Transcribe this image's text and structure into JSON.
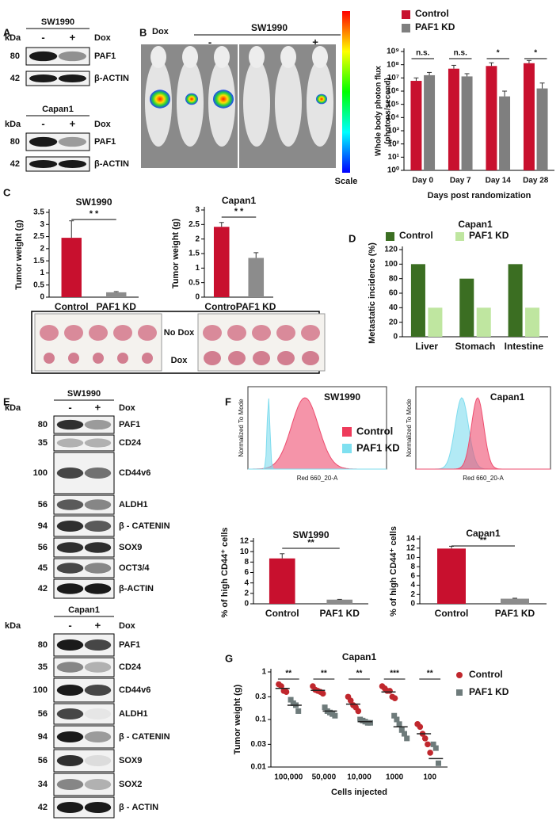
{
  "panel_labels": [
    "A",
    "B",
    "C",
    "D",
    "E",
    "F",
    "G"
  ],
  "blots": [
    {
      "title": "SW1990",
      "kda_label": "kDa",
      "lanes": [
        "-",
        "+"
      ],
      "condition": "Dox",
      "rows": [
        {
          "kda": "80",
          "label": "PAF1"
        },
        {
          "kda": "42",
          "label": "β-ACTIN"
        }
      ]
    },
    {
      "title": "Capan1",
      "kda_label": "kDa",
      "lanes": [
        "-",
        "+"
      ],
      "condition": "Dox",
      "rows": [
        {
          "kda": "80",
          "label": "PAF1"
        },
        {
          "kda": "42",
          "label": "β-ACTIN"
        }
      ]
    },
    {
      "title": "SW1990",
      "kda_label": "kDa",
      "lanes": [
        "-",
        "+"
      ],
      "condition": "Dox",
      "rows": [
        {
          "kda": "80",
          "label": "PAF1"
        },
        {
          "kda": "35",
          "label": "CD24"
        },
        {
          "kda": "100",
          "label": "CD44v6"
        },
        {
          "kda": "56",
          "label": "ALDH1"
        },
        {
          "kda": "94",
          "label": "β - CATENIN"
        },
        {
          "kda": "56",
          "label": "SOX9"
        },
        {
          "kda": "45",
          "label": "OCT3/4"
        },
        {
          "kda": "42",
          "label": "β-ACTIN"
        }
      ]
    },
    {
      "title": "Capan1",
      "kda_label": "kDa",
      "lanes": [
        "-",
        "+"
      ],
      "condition": "Dox",
      "rows": [
        {
          "kda": "80",
          "label": "PAF1"
        },
        {
          "kda": "35",
          "label": "CD24"
        },
        {
          "kda": "100",
          "label": "CD44v6"
        },
        {
          "kda": "56",
          "label": "ALDH1"
        },
        {
          "kda": "94",
          "label": "β - CATENIN"
        },
        {
          "kda": "56",
          "label": "SOX9"
        },
        {
          "kda": "34",
          "label": "SOX2"
        },
        {
          "kda": "42",
          "label": "β - ACTIN"
        }
      ]
    }
  ],
  "imaging": {
    "condition": "Dox",
    "cell_line": "SW1990",
    "lanes": [
      "-",
      "+"
    ],
    "scale_label": "Scale"
  },
  "tumor_photos": {
    "rows": [
      "No Dox",
      "Dox"
    ]
  },
  "flow": {
    "legend": [
      "Control",
      "PAF1 KD"
    ],
    "panels": [
      {
        "title": "SW1990",
        "ylabel": "Normalized To Mode",
        "xlabel": "Red 660_20-A"
      },
      {
        "title": "Capan1",
        "ylabel": "Normalized To Mode",
        "xlabel": "Red 660_20-A"
      }
    ]
  },
  "chart_data": [
    {
      "type": "bar",
      "ylabel": [
        "Whole body photon flux",
        "(photons/second)"
      ],
      "xlabel": "Days post randomization",
      "categories": [
        "Day 0",
        "Day 7",
        "Day 14",
        "Day 28"
      ],
      "series": [
        {
          "name": "Control",
          "color": "#c8102e",
          "values": [
            6000000,
            50000000,
            80000000,
            130000000
          ],
          "errors": [
            4000000,
            40000000,
            60000000,
            80000000
          ]
        },
        {
          "name": "PAF1 KD",
          "color": "#7f7f7f",
          "values": [
            16000000,
            13000000,
            400000,
            1600000
          ],
          "errors": [
            10000000,
            8000000,
            600000,
            2500000
          ]
        }
      ],
      "significance": [
        "n.s.",
        "n.s.",
        "*",
        "*"
      ],
      "log_scale": true,
      "ylim": [
        1,
        1000000000
      ],
      "yticks": [
        {
          "value": 1,
          "label": "10⁰"
        },
        {
          "value": 10,
          "label": "10¹"
        },
        {
          "value": 100,
          "label": "10²"
        },
        {
          "value": 1000,
          "label": "10³"
        },
        {
          "value": 10000,
          "label": "10⁴"
        },
        {
          "value": 100000,
          "label": "10⁵"
        },
        {
          "value": 1000000,
          "label": "10⁶"
        },
        {
          "value": 10000000,
          "label": "10⁷"
        },
        {
          "value": 100000000,
          "label": "10⁸"
        },
        {
          "value": 1000000000,
          "label": "10⁹"
        }
      ]
    },
    {
      "type": "bar",
      "title": "SW1990",
      "ylabel": "Tumor weight (g)",
      "categories": [
        "Control",
        "PAF1 KD"
      ],
      "values": [
        2.45,
        0.2
      ],
      "errors": [
        0.7,
        0.03
      ],
      "colors": [
        "#c8102e",
        "#8c8c8c"
      ],
      "significance": "* *",
      "ylim": [
        0,
        3.5
      ],
      "yticks": [
        0,
        0.5,
        1,
        1.5,
        2,
        2.5,
        3,
        3.5
      ]
    },
    {
      "type": "bar",
      "title": "Capan1",
      "ylabel": "Tumor weight (g)",
      "categories": [
        "Control",
        "PAF1 KD"
      ],
      "values": [
        2.42,
        1.35
      ],
      "errors": [
        0.15,
        0.18
      ],
      "colors": [
        "#c8102e",
        "#8c8c8c"
      ],
      "significance": "* *",
      "ylim": [
        0,
        3
      ],
      "yticks": [
        0,
        0.5,
        1,
        1.5,
        2,
        2.5,
        3
      ]
    },
    {
      "type": "bar",
      "title": "Capan1",
      "ylabel": "Metastatic incidence (%)",
      "categories": [
        "Liver",
        "Stomach",
        "Intestine"
      ],
      "series": [
        {
          "name": "Control",
          "color": "#3b6e22",
          "values": [
            100,
            80,
            100
          ]
        },
        {
          "name": "PAF1 KD",
          "color": "#bfe6a0",
          "values": [
            40,
            40,
            40
          ]
        }
      ],
      "ylim": [
        0,
        120
      ],
      "yticks": [
        0,
        20,
        40,
        60,
        80,
        100,
        120
      ]
    },
    {
      "type": "bar",
      "title": "SW1990",
      "ylabel": "% of high CD44⁺ cells",
      "categories": [
        "Control",
        "PAF1 KD"
      ],
      "values": [
        8.7,
        0.8
      ],
      "errors": [
        0.9,
        0.05
      ],
      "colors": [
        "#c8102e",
        "#8c8c8c"
      ],
      "significance": "**",
      "ylim": [
        0,
        12
      ],
      "yticks": [
        0,
        2,
        4,
        6,
        8,
        10,
        12
      ]
    },
    {
      "type": "bar",
      "title": "Capan1",
      "ylabel": "% of high CD44⁺ cells",
      "categories": [
        "Control",
        "PAF1 KD"
      ],
      "values": [
        11.9,
        1.1
      ],
      "errors": [
        0.5,
        0.1
      ],
      "colors": [
        "#c8102e",
        "#8c8c8c"
      ],
      "significance": "**",
      "ylim": [
        0,
        14
      ],
      "yticks": [
        0,
        2,
        4,
        6,
        8,
        10,
        12,
        14
      ]
    },
    {
      "type": "scatter",
      "title": "Capan1",
      "ylabel": "Tumor weight (g)",
      "xlabel": "Cells injected",
      "categories": [
        "100,000",
        "50,000",
        "10,000",
        "1000",
        "100"
      ],
      "series": [
        {
          "name": "Control",
          "color": "#c0272d",
          "marker": "circle",
          "values": [
            [
              0.55,
              0.5,
              0.4,
              0.38
            ],
            [
              0.5,
              0.42,
              0.4,
              0.38,
              0.35
            ],
            [
              0.3,
              0.25,
              0.2,
              0.18,
              0.15
            ],
            [
              0.5,
              0.45,
              0.4,
              0.4,
              0.3,
              0.28
            ],
            [
              0.08,
              0.07,
              0.05,
              0.04,
              0.03,
              0.02
            ]
          ],
          "means": [
            0.45,
            0.41,
            0.21,
            0.38,
            0.05
          ]
        },
        {
          "name": "PAF1 KD",
          "color": "#6e7b7b",
          "marker": "square",
          "values": [
            [
              0.26,
              0.22,
              0.2,
              0.15
            ],
            [
              0.18,
              0.15,
              0.14,
              0.13,
              0.12
            ],
            [
              0.1,
              0.095,
              0.09,
              0.085,
              0.085
            ],
            [
              0.12,
              0.1,
              0.08,
              0.06,
              0.05,
              0.04
            ],
            [
              0.03,
              0.025,
              0.012
            ]
          ],
          "means": [
            0.2,
            0.15,
            0.09,
            0.07,
            0.015
          ]
        }
      ],
      "significance": [
        "**",
        "**",
        "**",
        "***",
        "**"
      ],
      "log_scale": true,
      "ylim": [
        0.01,
        1
      ],
      "yticks": [
        0.01,
        0.03,
        0.1,
        0.3,
        1
      ]
    }
  ]
}
